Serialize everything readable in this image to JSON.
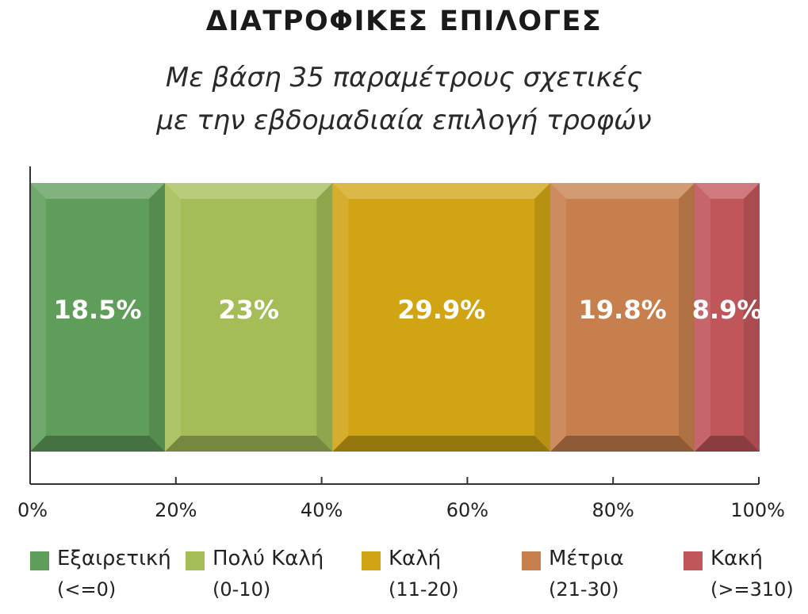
{
  "title": "ΔΙΑΤΡΟΦΙΚΕΣ ΕΠΙΛΟΓΕΣ",
  "subtitle_line1": "Με βάση 35 παραμέτρους σχετικές",
  "subtitle_line2": "με την εβδομαδιαία επιλογή τροφών",
  "chart_data": {
    "type": "bar",
    "orientation": "horizontal",
    "stacked": "100%",
    "title": "ΔΙΑΤΡΟΦΙΚΕΣ ΕΠΙΛΟΓΕΣ",
    "xlim": [
      0,
      100
    ],
    "x_ticks": [
      "0%",
      "20%",
      "40%",
      "60%",
      "80%",
      "100%"
    ],
    "x_tick_values": [
      0,
      20,
      40,
      60,
      80,
      100
    ],
    "grid": false,
    "legend_position": "bottom",
    "series": [
      {
        "name": "Εξαιρετική",
        "range": "(<=0)",
        "value": 18.5,
        "label": "18.5%",
        "color": "#5f9e5a"
      },
      {
        "name": "Πολύ Καλή",
        "range": "(0-10)",
        "value": 23,
        "label": "23%",
        "color": "#a4bd57"
      },
      {
        "name": "Καλή",
        "range": "(11-20)",
        "value": 29.9,
        "label": "29.9%",
        "color": "#d1a414"
      },
      {
        "name": "Μέτρια",
        "range": "(21-30)",
        "value": 19.8,
        "label": "19.8%",
        "color": "#c77f4d"
      },
      {
        "name": "Κακή",
        "range": "(>=310)",
        "value": 8.9,
        "label": "8.9%",
        "color": "#c0555a"
      }
    ]
  }
}
